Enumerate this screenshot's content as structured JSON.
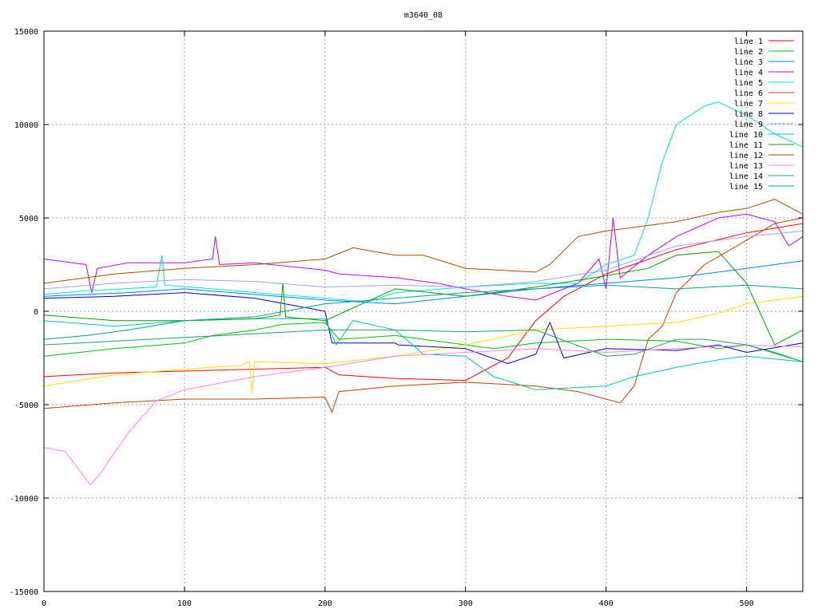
{
  "chart_data": {
    "type": "line",
    "title": "m3640_08",
    "xlabel": "",
    "ylabel": "",
    "xlim": [
      0,
      540
    ],
    "ylim": [
      -15000,
      15000
    ],
    "x_ticks": [
      0,
      100,
      200,
      300,
      400,
      500
    ],
    "y_ticks": [
      -15000,
      -10000,
      -5000,
      0,
      5000,
      10000,
      15000
    ],
    "grid": true,
    "legend_position": "top-right",
    "series": [
      {
        "name": "line 1",
        "color": "#ff0000",
        "points": [
          [
            0,
            -3500
          ],
          [
            50,
            -3300
          ],
          [
            100,
            -3200
          ],
          [
            150,
            -3100
          ],
          [
            200,
            -3000
          ],
          [
            210,
            -3400
          ],
          [
            250,
            -3600
          ],
          [
            300,
            -3700
          ],
          [
            330,
            -2500
          ],
          [
            350,
            -500
          ],
          [
            370,
            800
          ],
          [
            400,
            2000
          ],
          [
            450,
            3300
          ],
          [
            500,
            4200
          ],
          [
            540,
            4700
          ]
        ]
      },
      {
        "name": "line 2",
        "color": "#00c000",
        "points": [
          [
            0,
            -2400
          ],
          [
            50,
            -2000
          ],
          [
            100,
            -1700
          ],
          [
            120,
            -1300
          ],
          [
            150,
            -1000
          ],
          [
            170,
            -700
          ],
          [
            200,
            -600
          ],
          [
            210,
            -1500
          ],
          [
            250,
            -1300
          ],
          [
            300,
            -1800
          ],
          [
            320,
            -2000
          ],
          [
            350,
            -1700
          ],
          [
            400,
            -1500
          ],
          [
            450,
            -1600
          ],
          [
            480,
            -2000
          ],
          [
            500,
            -1800
          ],
          [
            520,
            -2200
          ],
          [
            540,
            -2700
          ]
        ]
      },
      {
        "name": "line 3",
        "color": "#0080ff",
        "points": [
          [
            0,
            800
          ],
          [
            30,
            900
          ],
          [
            60,
            1000
          ],
          [
            100,
            1200
          ],
          [
            150,
            900
          ],
          [
            200,
            600
          ],
          [
            250,
            400
          ],
          [
            300,
            800
          ],
          [
            350,
            1200
          ],
          [
            400,
            1500
          ],
          [
            450,
            1800
          ],
          [
            500,
            2300
          ],
          [
            540,
            2700
          ]
        ]
      },
      {
        "name": "line 4",
        "color": "#c000ff",
        "points": [
          [
            0,
            2800
          ],
          [
            30,
            2500
          ],
          [
            34,
            1000
          ],
          [
            38,
            2300
          ],
          [
            60,
            2600
          ],
          [
            100,
            2600
          ],
          [
            120,
            2800
          ],
          [
            122,
            4000
          ],
          [
            125,
            2500
          ],
          [
            150,
            2600
          ],
          [
            200,
            2200
          ],
          [
            210,
            2000
          ],
          [
            250,
            1800
          ],
          [
            280,
            1500
          ],
          [
            300,
            1200
          ],
          [
            330,
            800
          ],
          [
            350,
            600
          ],
          [
            380,
            1500
          ],
          [
            395,
            2800
          ],
          [
            400,
            1200
          ],
          [
            405,
            5000
          ],
          [
            410,
            1800
          ],
          [
            430,
            3000
          ],
          [
            450,
            4000
          ],
          [
            480,
            5000
          ],
          [
            500,
            5200
          ],
          [
            520,
            4800
          ],
          [
            530,
            3500
          ],
          [
            540,
            4000
          ]
        ]
      },
      {
        "name": "line 5",
        "color": "#00e0e0",
        "points": [
          [
            0,
            900
          ],
          [
            30,
            1100
          ],
          [
            80,
            1300
          ],
          [
            84,
            3000
          ],
          [
            86,
            1400
          ],
          [
            120,
            1200
          ],
          [
            150,
            1000
          ],
          [
            200,
            700
          ],
          [
            230,
            500
          ],
          [
            250,
            1000
          ],
          [
            300,
            1300
          ],
          [
            350,
            1500
          ],
          [
            380,
            1500
          ],
          [
            400,
            2500
          ],
          [
            420,
            3000
          ],
          [
            430,
            5000
          ],
          [
            440,
            8000
          ],
          [
            450,
            10000
          ],
          [
            470,
            11000
          ],
          [
            480,
            11200
          ],
          [
            500,
            10500
          ],
          [
            520,
            9500
          ],
          [
            540,
            8800
          ]
        ]
      },
      {
        "name": "line 6",
        "color": "#c04000",
        "points": [
          [
            0,
            -5200
          ],
          [
            50,
            -4900
          ],
          [
            100,
            -4700
          ],
          [
            150,
            -4700
          ],
          [
            200,
            -4600
          ],
          [
            205,
            -5400
          ],
          [
            210,
            -4300
          ],
          [
            250,
            -4000
          ],
          [
            300,
            -3800
          ],
          [
            350,
            -4000
          ],
          [
            380,
            -4300
          ],
          [
            400,
            -4700
          ],
          [
            410,
            -4900
          ],
          [
            420,
            -4000
          ],
          [
            430,
            -1500
          ],
          [
            440,
            -800
          ],
          [
            450,
            1000
          ],
          [
            470,
            2500
          ],
          [
            500,
            3800
          ],
          [
            520,
            4700
          ],
          [
            540,
            5000
          ]
        ]
      },
      {
        "name": "line 7",
        "color": "#ffe000",
        "points": [
          [
            0,
            -4000
          ],
          [
            50,
            -3400
          ],
          [
            100,
            -3100
          ],
          [
            140,
            -2900
          ],
          [
            146,
            -2700
          ],
          [
            148,
            -4400
          ],
          [
            150,
            -2700
          ],
          [
            200,
            -2800
          ],
          [
            250,
            -2400
          ],
          [
            300,
            -1800
          ],
          [
            350,
            -1000
          ],
          [
            400,
            -800
          ],
          [
            450,
            -600
          ],
          [
            480,
            -100
          ],
          [
            500,
            400
          ],
          [
            540,
            800
          ]
        ]
      },
      {
        "name": "line 8",
        "color": "#0000c0",
        "points": [
          [
            0,
            700
          ],
          [
            50,
            800
          ],
          [
            100,
            1000
          ],
          [
            150,
            700
          ],
          [
            200,
            0
          ],
          [
            205,
            -1700
          ],
          [
            225,
            -1700
          ],
          [
            250,
            -1700
          ],
          [
            252,
            -1800
          ],
          [
            300,
            -2000
          ],
          [
            330,
            -2800
          ],
          [
            350,
            -2300
          ],
          [
            360,
            -600
          ],
          [
            370,
            -2500
          ],
          [
            400,
            -2000
          ],
          [
            450,
            -2100
          ],
          [
            480,
            -1800
          ],
          [
            500,
            -2200
          ],
          [
            540,
            -1700
          ]
        ]
      },
      {
        "name": "line 9",
        "color": "#a0a0ff",
        "points": [
          [
            0,
            1200
          ],
          [
            50,
            1500
          ],
          [
            100,
            1700
          ],
          [
            150,
            1600
          ],
          [
            200,
            1300
          ],
          [
            250,
            1400
          ],
          [
            300,
            1300
          ],
          [
            350,
            1600
          ],
          [
            400,
            2200
          ],
          [
            450,
            3500
          ],
          [
            500,
            4000
          ],
          [
            540,
            4300
          ]
        ]
      },
      {
        "name": "line 10",
        "color": "#00c0c0",
        "points": [
          [
            0,
            -500
          ],
          [
            50,
            -800
          ],
          [
            100,
            -500
          ],
          [
            150,
            -400
          ],
          [
            200,
            -400
          ],
          [
            208,
            -1800
          ],
          [
            220,
            -500
          ],
          [
            250,
            -1000
          ],
          [
            270,
            -2300
          ],
          [
            300,
            -2400
          ],
          [
            320,
            -3500
          ],
          [
            350,
            -4200
          ],
          [
            400,
            -4000
          ],
          [
            420,
            -3500
          ],
          [
            450,
            -3000
          ],
          [
            480,
            -2600
          ],
          [
            500,
            -2400
          ],
          [
            540,
            -2700
          ]
        ]
      },
      {
        "name": "line 11",
        "color": "#00a000",
        "points": [
          [
            0,
            -200
          ],
          [
            50,
            -500
          ],
          [
            100,
            -500
          ],
          [
            150,
            -400
          ],
          [
            168,
            -200
          ],
          [
            170,
            1500
          ],
          [
            172,
            -300
          ],
          [
            200,
            -500
          ],
          [
            250,
            1200
          ],
          [
            300,
            800
          ],
          [
            350,
            1300
          ],
          [
            400,
            1900
          ],
          [
            430,
            2300
          ],
          [
            450,
            3000
          ],
          [
            480,
            3200
          ],
          [
            500,
            1500
          ],
          [
            520,
            -1800
          ],
          [
            540,
            -1000
          ]
        ]
      },
      {
        "name": "line 12",
        "color": "#a05000",
        "points": [
          [
            0,
            1500
          ],
          [
            50,
            2000
          ],
          [
            100,
            2300
          ],
          [
            150,
            2500
          ],
          [
            200,
            2800
          ],
          [
            220,
            3400
          ],
          [
            250,
            3000
          ],
          [
            270,
            3000
          ],
          [
            300,
            2300
          ],
          [
            350,
            2100
          ],
          [
            360,
            2500
          ],
          [
            380,
            4000
          ],
          [
            400,
            4300
          ],
          [
            450,
            4800
          ],
          [
            480,
            5300
          ],
          [
            500,
            5500
          ],
          [
            520,
            6000
          ],
          [
            540,
            5200
          ]
        ]
      },
      {
        "name": "line 13",
        "color": "#ff80ff",
        "points": [
          [
            0,
            -7300
          ],
          [
            15,
            -7500
          ],
          [
            25,
            -8500
          ],
          [
            33,
            -9300
          ],
          [
            40,
            -8700
          ],
          [
            60,
            -6500
          ],
          [
            80,
            -4800
          ],
          [
            100,
            -4200
          ],
          [
            150,
            -3500
          ],
          [
            200,
            -3000
          ],
          [
            250,
            -2400
          ],
          [
            300,
            -2200
          ],
          [
            350,
            -2000
          ],
          [
            400,
            -2200
          ],
          [
            450,
            -2000
          ],
          [
            500,
            -1800
          ],
          [
            540,
            -1900
          ]
        ]
      },
      {
        "name": "line 14",
        "color": "#20a060",
        "points": [
          [
            0,
            -1800
          ],
          [
            50,
            -1600
          ],
          [
            100,
            -1400
          ],
          [
            150,
            -1200
          ],
          [
            200,
            -1000
          ],
          [
            250,
            -1000
          ],
          [
            300,
            -1100
          ],
          [
            350,
            -1000
          ],
          [
            400,
            -2400
          ],
          [
            420,
            -2300
          ],
          [
            450,
            -1500
          ],
          [
            470,
            -1500
          ],
          [
            500,
            -1800
          ],
          [
            540,
            -2700
          ]
        ]
      },
      {
        "name": "line 15",
        "color": "#00a0a0",
        "points": [
          [
            0,
            -1500
          ],
          [
            30,
            -1300
          ],
          [
            60,
            -1000
          ],
          [
            100,
            -500
          ],
          [
            150,
            -300
          ],
          [
            200,
            400
          ],
          [
            250,
            700
          ],
          [
            300,
            1000
          ],
          [
            350,
            1200
          ],
          [
            400,
            1400
          ],
          [
            450,
            1200
          ],
          [
            500,
            1400
          ],
          [
            540,
            1200
          ]
        ]
      }
    ]
  }
}
